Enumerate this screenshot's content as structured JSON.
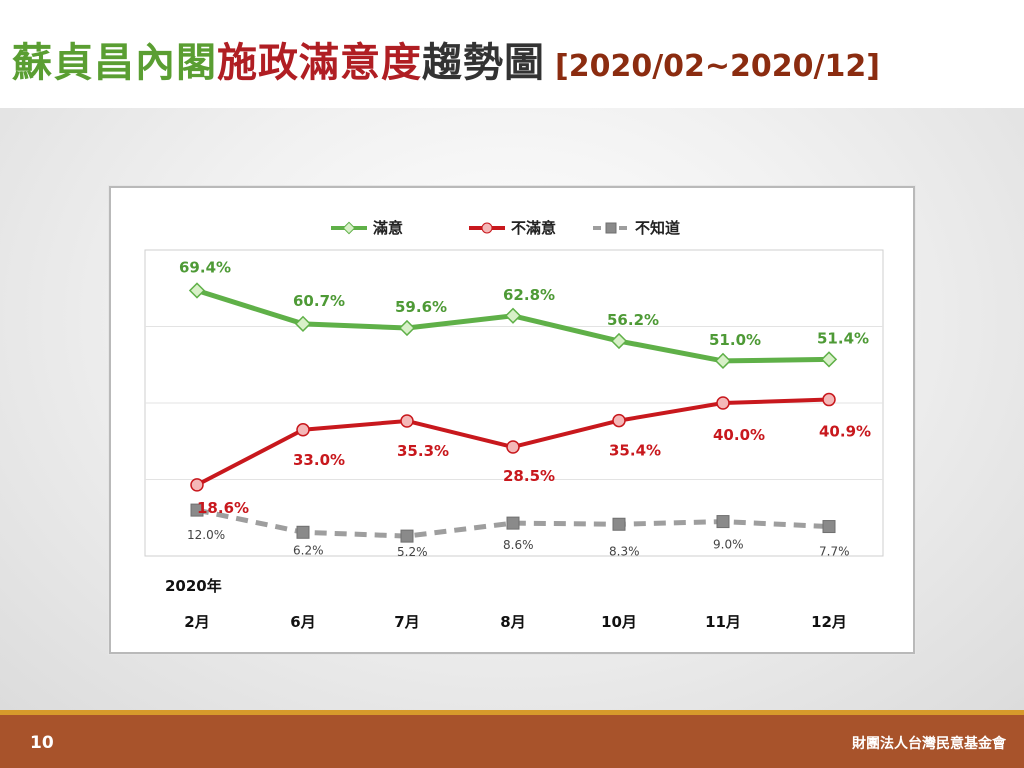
{
  "slide": {
    "title_part1": "蘇貞昌內閣",
    "title_part2": "施政滿意度",
    "title_part3": "趨勢圖",
    "title_range": "[2020/02~2020/12]",
    "page_number": "10",
    "organization": "財團法人台灣民意基金會"
  },
  "colors": {
    "satisfied": "#5fb048",
    "dissatisfied": "#c8181d",
    "unknown": "#9e9e9e"
  },
  "chart_data": {
    "type": "line",
    "year_label": "2020年",
    "categories": [
      "2月",
      "6月",
      "7月",
      "8月",
      "10月",
      "11月",
      "12月"
    ],
    "ylim": [
      0,
      80
    ],
    "grid": true,
    "legend_position": "top-center",
    "series": [
      {
        "name": "滿意",
        "key": "satisfied",
        "values": [
          69.4,
          60.7,
          59.6,
          62.8,
          56.2,
          51.0,
          51.4
        ],
        "labels": [
          "69.4%",
          "60.7%",
          "59.6%",
          "62.8%",
          "56.2%",
          "51.0%",
          "51.4%"
        ]
      },
      {
        "name": "不滿意",
        "key": "dissatisfied",
        "values": [
          18.6,
          33.0,
          35.3,
          28.5,
          35.4,
          40.0,
          40.9
        ],
        "labels": [
          "18.6%",
          "33.0%",
          "35.3%",
          "28.5%",
          "35.4%",
          "40.0%",
          "40.9%"
        ]
      },
      {
        "name": "不知道",
        "key": "unknown",
        "values": [
          12.0,
          6.2,
          5.2,
          8.6,
          8.3,
          9.0,
          7.7
        ],
        "labels": [
          "12.0%",
          "6.2%",
          "5.2%",
          "8.6%",
          "8.3%",
          "9.0%",
          "7.7%"
        ]
      }
    ]
  }
}
